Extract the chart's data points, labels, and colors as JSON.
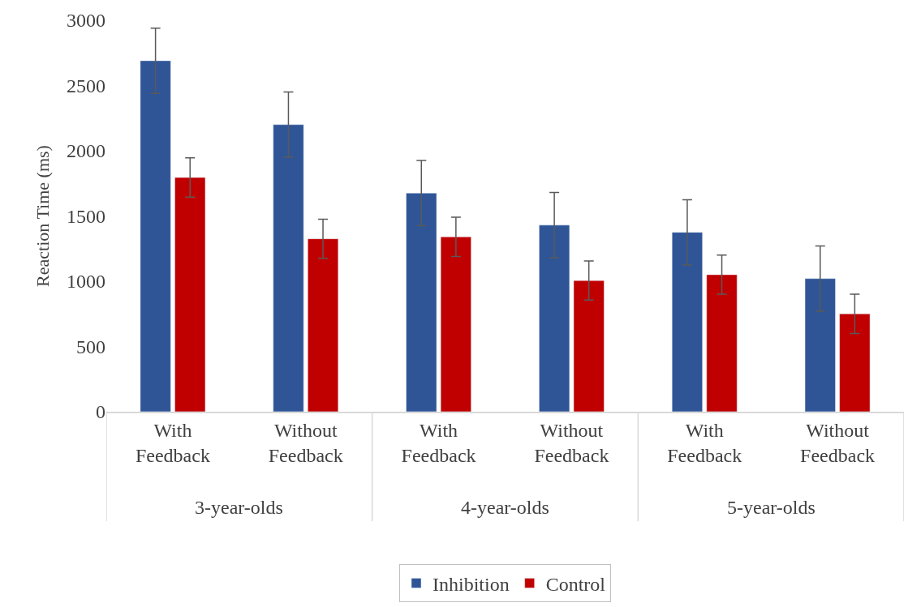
{
  "chart_data": {
    "type": "bar",
    "ylabel": "Reaction Time (ms)",
    "categories": [
      "With Feedback",
      "Without Feedback",
      "With Feedback",
      "Without Feedback",
      "With Feedback",
      "Without Feedback"
    ],
    "series": [
      {
        "name": "Inhibition",
        "color": "#2f5597",
        "values": [
          2690,
          2200,
          1675,
          1430,
          1375,
          1020
        ],
        "errors": [
          250,
          250,
          250,
          250,
          250,
          250
        ]
      },
      {
        "name": "Control",
        "color": "#c00000",
        "values": [
          1795,
          1325,
          1340,
          1005,
          1050,
          750
        ],
        "errors": [
          150,
          150,
          150,
          150,
          150,
          150
        ]
      }
    ],
    "annotations": [
      "3-year-olds",
      "4-year-olds",
      "5-year-olds"
    ],
    "ylim": [
      0,
      3000
    ],
    "yticks": [
      0,
      500,
      1000,
      1500,
      2000,
      2500,
      3000
    ],
    "grid": false,
    "legend": "bottom"
  }
}
